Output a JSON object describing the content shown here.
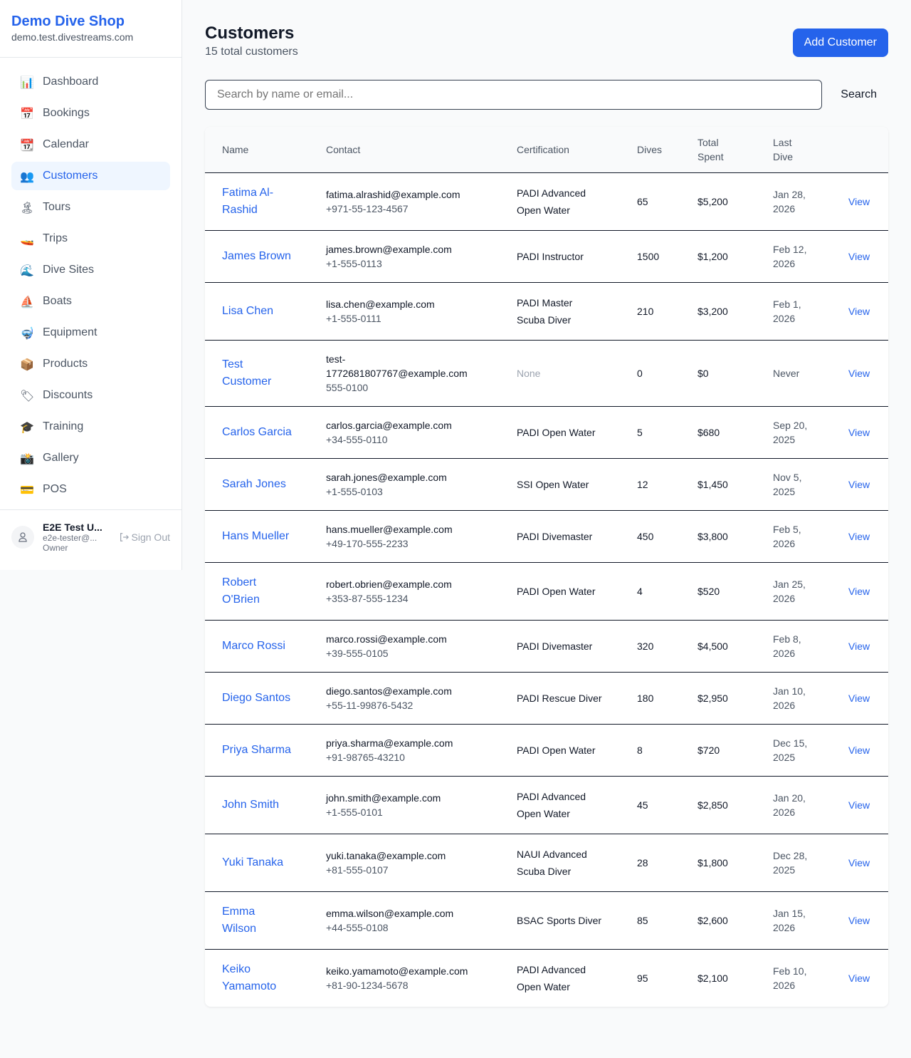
{
  "sidebar": {
    "brand": "Demo Dive Shop",
    "domain": "demo.test.divestreams.com",
    "items": [
      {
        "label": "Dashboard",
        "icon": "📊",
        "icon_name": "bar-chart-icon"
      },
      {
        "label": "Bookings",
        "icon": "📅",
        "icon_name": "calendar-date-icon"
      },
      {
        "label": "Calendar",
        "icon": "📆",
        "icon_name": "calendar-icon"
      },
      {
        "label": "Customers",
        "icon": "👥",
        "icon_name": "people-icon",
        "active": true
      },
      {
        "label": "Tours",
        "icon": "🏝",
        "icon_name": "island-icon"
      },
      {
        "label": "Trips",
        "icon": "🚤",
        "icon_name": "speedboat-icon"
      },
      {
        "label": "Dive Sites",
        "icon": "🌊",
        "icon_name": "wave-icon"
      },
      {
        "label": "Boats",
        "icon": "⛵",
        "icon_name": "sailboat-icon"
      },
      {
        "label": "Equipment",
        "icon": "🤿",
        "icon_name": "diving-mask-icon"
      },
      {
        "label": "Products",
        "icon": "📦",
        "icon_name": "package-icon"
      },
      {
        "label": "Discounts",
        "icon": "🏷",
        "icon_name": "tag-icon"
      },
      {
        "label": "Training",
        "icon": "🎓",
        "icon_name": "graduation-cap-icon"
      },
      {
        "label": "Gallery",
        "icon": "📸",
        "icon_name": "camera-icon"
      },
      {
        "label": "POS",
        "icon": "💳",
        "icon_name": "credit-card-icon"
      }
    ],
    "user": {
      "name": "E2E Test U...",
      "email": "e2e-tester@...",
      "role": "Owner",
      "sign_out": "Sign Out"
    }
  },
  "header": {
    "title": "Customers",
    "subtitle": "15 total customers",
    "add_label": "Add Customer"
  },
  "search": {
    "placeholder": "Search by name or email...",
    "button": "Search"
  },
  "table": {
    "columns": [
      "Name",
      "Contact",
      "Certification",
      "Dives",
      "Total Spent",
      "Last Dive",
      ""
    ],
    "view_label": "View",
    "rows": [
      {
        "name": "Fatima Al-Rashid",
        "email": "fatima.alrashid@example.com",
        "phone": "+971-55-123-4567",
        "cert": "PADI Advanced Open Water",
        "dives": "65",
        "spent": "$5,200",
        "last": "Jan 28, 2026"
      },
      {
        "name": "James Brown",
        "email": "james.brown@example.com",
        "phone": "+1-555-0113",
        "cert": "PADI Instructor",
        "dives": "1500",
        "spent": "$1,200",
        "last": "Feb 12, 2026"
      },
      {
        "name": "Lisa Chen",
        "email": "lisa.chen@example.com",
        "phone": "+1-555-0111",
        "cert": "PADI Master Scuba Diver",
        "dives": "210",
        "spent": "$3,200",
        "last": "Feb 1, 2026"
      },
      {
        "name": "Test Customer",
        "email": "test-1772681807767@example.com",
        "phone": "555-0100",
        "cert": "None",
        "dives": "0",
        "spent": "$0",
        "last": "Never"
      },
      {
        "name": "Carlos Garcia",
        "email": "carlos.garcia@example.com",
        "phone": "+34-555-0110",
        "cert": "PADI Open Water",
        "dives": "5",
        "spent": "$680",
        "last": "Sep 20, 2025"
      },
      {
        "name": "Sarah Jones",
        "email": "sarah.jones@example.com",
        "phone": "+1-555-0103",
        "cert": "SSI Open Water",
        "dives": "12",
        "spent": "$1,450",
        "last": "Nov 5, 2025"
      },
      {
        "name": "Hans Mueller",
        "email": "hans.mueller@example.com",
        "phone": "+49-170-555-2233",
        "cert": "PADI Divemaster",
        "dives": "450",
        "spent": "$3,800",
        "last": "Feb 5, 2026"
      },
      {
        "name": "Robert O'Brien",
        "email": "robert.obrien@example.com",
        "phone": "+353-87-555-1234",
        "cert": "PADI Open Water",
        "dives": "4",
        "spent": "$520",
        "last": "Jan 25, 2026"
      },
      {
        "name": "Marco Rossi",
        "email": "marco.rossi@example.com",
        "phone": "+39-555-0105",
        "cert": "PADI Divemaster",
        "dives": "320",
        "spent": "$4,500",
        "last": "Feb 8, 2026"
      },
      {
        "name": "Diego Santos",
        "email": "diego.santos@example.com",
        "phone": "+55-11-99876-5432",
        "cert": "PADI Rescue Diver",
        "dives": "180",
        "spent": "$2,950",
        "last": "Jan 10, 2026"
      },
      {
        "name": "Priya Sharma",
        "email": "priya.sharma@example.com",
        "phone": "+91-98765-43210",
        "cert": "PADI Open Water",
        "dives": "8",
        "spent": "$720",
        "last": "Dec 15, 2025"
      },
      {
        "name": "John Smith",
        "email": "john.smith@example.com",
        "phone": "+1-555-0101",
        "cert": "PADI Advanced Open Water",
        "dives": "45",
        "spent": "$2,850",
        "last": "Jan 20, 2026"
      },
      {
        "name": "Yuki Tanaka",
        "email": "yuki.tanaka@example.com",
        "phone": "+81-555-0107",
        "cert": "NAUI Advanced Scuba Diver",
        "dives": "28",
        "spent": "$1,800",
        "last": "Dec 28, 2025"
      },
      {
        "name": "Emma Wilson",
        "email": "emma.wilson@example.com",
        "phone": "+44-555-0108",
        "cert": "BSAC Sports Diver",
        "dives": "85",
        "spent": "$2,600",
        "last": "Jan 15, 2026"
      },
      {
        "name": "Keiko Yamamoto",
        "email": "keiko.yamamoto@example.com",
        "phone": "+81-90-1234-5678",
        "cert": "PADI Advanced Open Water",
        "dives": "95",
        "spent": "$2,100",
        "last": "Feb 10, 2026"
      }
    ]
  }
}
